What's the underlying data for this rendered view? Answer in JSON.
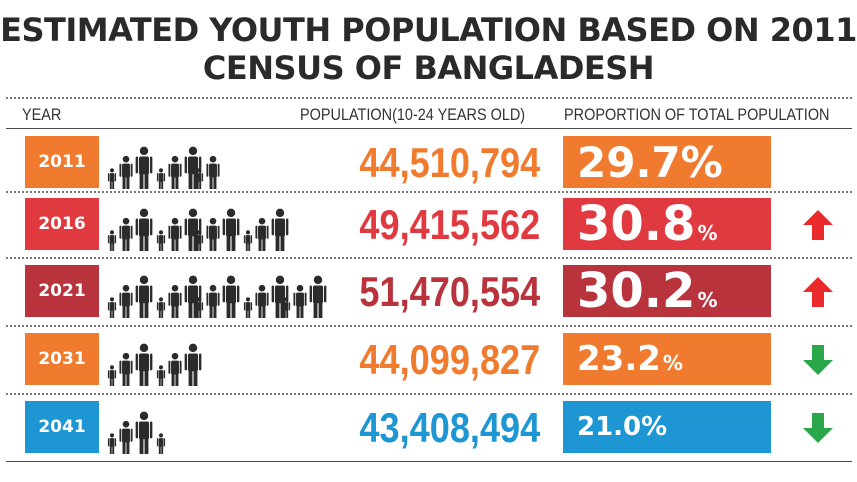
{
  "title": {
    "line1": "ESTIMATED YOUTH POPULATION BASED ON 2011",
    "line2": "CENSUS OF BANGLADESH"
  },
  "headers": {
    "year": "YEAR",
    "population": "POPULATION(10-24 YEARS OLD)",
    "proportion": "PROPORTION OF TOTAL POPULATION"
  },
  "colors": {
    "orange": "#f07b2e",
    "red": "#e03a40",
    "darkred": "#b8333c",
    "blue": "#1e96d3",
    "up_arrow": "#ea2a2a",
    "down_arrow": "#2aa748"
  },
  "rows": [
    {
      "year": "2011",
      "population": "44,510,794",
      "pct_value": "29.7",
      "pct_symbol": "%",
      "trend": "none"
    },
    {
      "year": "2016",
      "population": "49,415,562",
      "pct_value": "30.8",
      "pct_symbol": "%",
      "trend": "up"
    },
    {
      "year": "2021",
      "population": "51,470,554",
      "pct_value": "30.2",
      "pct_symbol": "%",
      "trend": "up"
    },
    {
      "year": "2031",
      "population": "44,099,827",
      "pct_value": "23.2",
      "pct_symbol": "%",
      "trend": "down"
    },
    {
      "year": "2041",
      "population": "43,408,494",
      "pct_value": "21.0",
      "pct_symbol": "%",
      "trend": "down"
    }
  ],
  "chart_data": {
    "type": "table",
    "title": "ESTIMATED YOUTH POPULATION BASED ON 2011 CENSUS OF BANGLADESH",
    "columns": [
      "YEAR",
      "POPULATION(10-24 YEARS OLD)",
      "PROPORTION OF TOTAL POPULATION"
    ],
    "categories": [
      "2011",
      "2016",
      "2021",
      "2031",
      "2041"
    ],
    "series": [
      {
        "name": "Population (10-24 years old)",
        "values": [
          44510794,
          49415562,
          51470554,
          44099827,
          43408494
        ]
      },
      {
        "name": "Proportion of total population (%)",
        "values": [
          29.7,
          30.8,
          30.2,
          23.2,
          21.0
        ]
      }
    ],
    "trend": [
      "none",
      "up",
      "up",
      "down",
      "down"
    ]
  }
}
